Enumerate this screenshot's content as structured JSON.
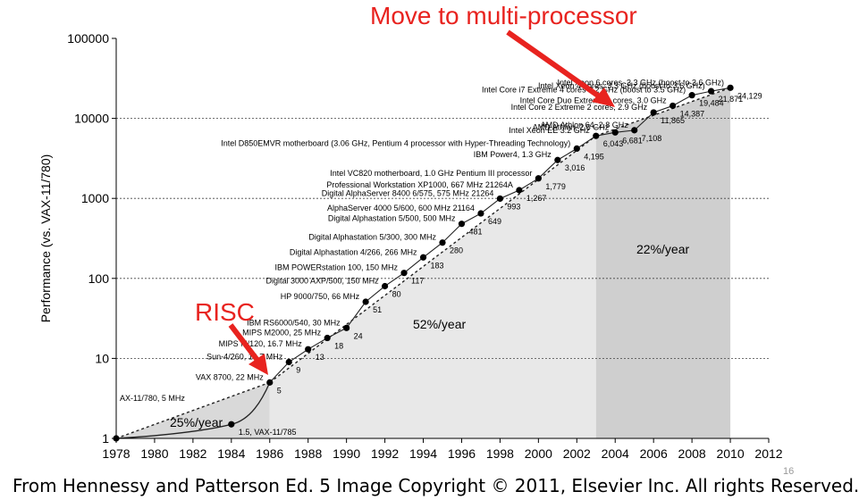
{
  "chart_data": {
    "type": "scatter",
    "ylabel": "Performance (vs. VAX-11/780)",
    "yscale": "log",
    "xlim": [
      1978,
      2012
    ],
    "ylim": [
      1,
      100000
    ],
    "xticks": [
      "1978",
      "1980",
      "1982",
      "1984",
      "1986",
      "1988",
      "1990",
      "1992",
      "1994",
      "1996",
      "1998",
      "2000",
      "2002",
      "2004",
      "2006",
      "2008",
      "2010",
      "2012"
    ],
    "yticks": [
      "1",
      "10",
      "100",
      "1000",
      "10000",
      "100000"
    ],
    "grid": "horizontal dotted",
    "regions": [
      {
        "label": "25%/year",
        "x": [
          1978,
          1986
        ]
      },
      {
        "label": "52%/year",
        "x": [
          1986,
          2003
        ]
      },
      {
        "label": "22%/year",
        "x": [
          2003,
          2010
        ]
      }
    ],
    "points": [
      {
        "year": 1978,
        "value": 1,
        "label": "AX-11/780, 5 MHz",
        "value_label": ""
      },
      {
        "year": 1984,
        "value": 1.5,
        "label": "",
        "value_label": "1.5, VAX-11/785"
      },
      {
        "year": 1986,
        "value": 5,
        "label": "VAX 8700, 22 MHz",
        "value_label": "5"
      },
      {
        "year": 1987,
        "value": 9,
        "label": "Sun-4/260, 16.7 MHz",
        "value_label": "9"
      },
      {
        "year": 1988,
        "value": 13,
        "label": "MIPS M/120, 16.7 MHz",
        "value_label": "13"
      },
      {
        "year": 1989,
        "value": 18,
        "label": "MIPS M2000, 25 MHz",
        "value_label": "18"
      },
      {
        "year": 1990,
        "value": 24,
        "label": "IBM RS6000/540, 30 MHz",
        "value_label": "24"
      },
      {
        "year": 1991,
        "value": 51,
        "label": "HP 9000/750, 66 MHz",
        "value_label": "51"
      },
      {
        "year": 1992,
        "value": 80,
        "label": "Digital 3000 AXP/500, 150 MHz",
        "value_label": "80"
      },
      {
        "year": 1993,
        "value": 117,
        "label": "IBM POWERstation 100, 150 MHz",
        "value_label": "117"
      },
      {
        "year": 1994,
        "value": 183,
        "label": "Digital Alphastation 4/266, 266 MHz",
        "value_label": "183"
      },
      {
        "year": 1995,
        "value": 280,
        "label": "Digital Alphastation 5/300, 300 MHz",
        "value_label": "280"
      },
      {
        "year": 1996,
        "value": 481,
        "label": "Digital Alphastation 5/500, 500 MHz",
        "value_label": "481"
      },
      {
        "year": 1997,
        "value": 649,
        "label": "AlphaServer 4000 5/600, 600 MHz 21164",
        "value_label": "649"
      },
      {
        "year": 1998,
        "value": 993,
        "label": "Digital AlphaServer 8400 6/575, 575 MHz 21264",
        "value_label": "993"
      },
      {
        "year": 1999,
        "value": 1267,
        "label": "Professional Workstation XP1000, 667 MHz 21264A",
        "value_label": "1,267"
      },
      {
        "year": 2000,
        "value": 1779,
        "label": "Intel VC820 motherboard, 1.0 GHz Pentium III processor",
        "value_label": "1,779"
      },
      {
        "year": 2001,
        "value": 3016,
        "label": "IBM Power4, 1.3 GHz",
        "value_label": "3,016"
      },
      {
        "year": 2002,
        "value": 4195,
        "label": "Intel D850EMVR motherboard (3.06 GHz, Pentium 4 processor with Hyper-Threading Technology)",
        "value_label": "4,195"
      },
      {
        "year": 2003,
        "value": 6043,
        "label": "Intel Xeon EE 3.2 GHz",
        "value_label": "6,043"
      },
      {
        "year": 2004,
        "value": 6681,
        "label": "AMD Athlon, 2.6 GHz",
        "value_label": "6,681"
      },
      {
        "year": 2005,
        "value": 7108,
        "label": "AMD Athlon 64, 2.8 GHz",
        "value_label": "7,108"
      },
      {
        "year": 2006,
        "value": 11865,
        "label": "Intel Core 2 Extreme 2 cores, 2.9 GHz",
        "value_label": "11,865"
      },
      {
        "year": 2007,
        "value": 14387,
        "label": "Intel Core Duo Extreme 2 cores, 3.0 GHz",
        "value_label": "14,387"
      },
      {
        "year": 2008,
        "value": 19484,
        "label": "Intel Core i7 Extreme 4 cores 3.2 GHz (boost to 3.5 GHz)",
        "value_label": "19,484"
      },
      {
        "year": 2009,
        "value": 21871,
        "label": "Intel Xeon 4 cores, 3.3 GHz (boost to 3.6 GHz)",
        "value_label": "21,871"
      },
      {
        "year": 2010,
        "value": 24129,
        "label": "Intel Xeon 6 cores, 3.3 GHz (boost to 3.6 GHz)",
        "value_label": "24,129"
      }
    ],
    "annotations": [
      "Move to multi-processor",
      "RISC"
    ]
  },
  "headline": "Move to multi-processor",
  "risc_label": "RISC",
  "credit": "From Hennessy and Patterson Ed. 5 Image Copyright © 2011, Elsevier Inc. All rights Reserved.",
  "slide_number": "16",
  "colors": {
    "accent": "#e8231f",
    "region_light": "#e8e8e8",
    "region_dark": "#cfcfcf",
    "region_left": "#d9d9d9"
  }
}
